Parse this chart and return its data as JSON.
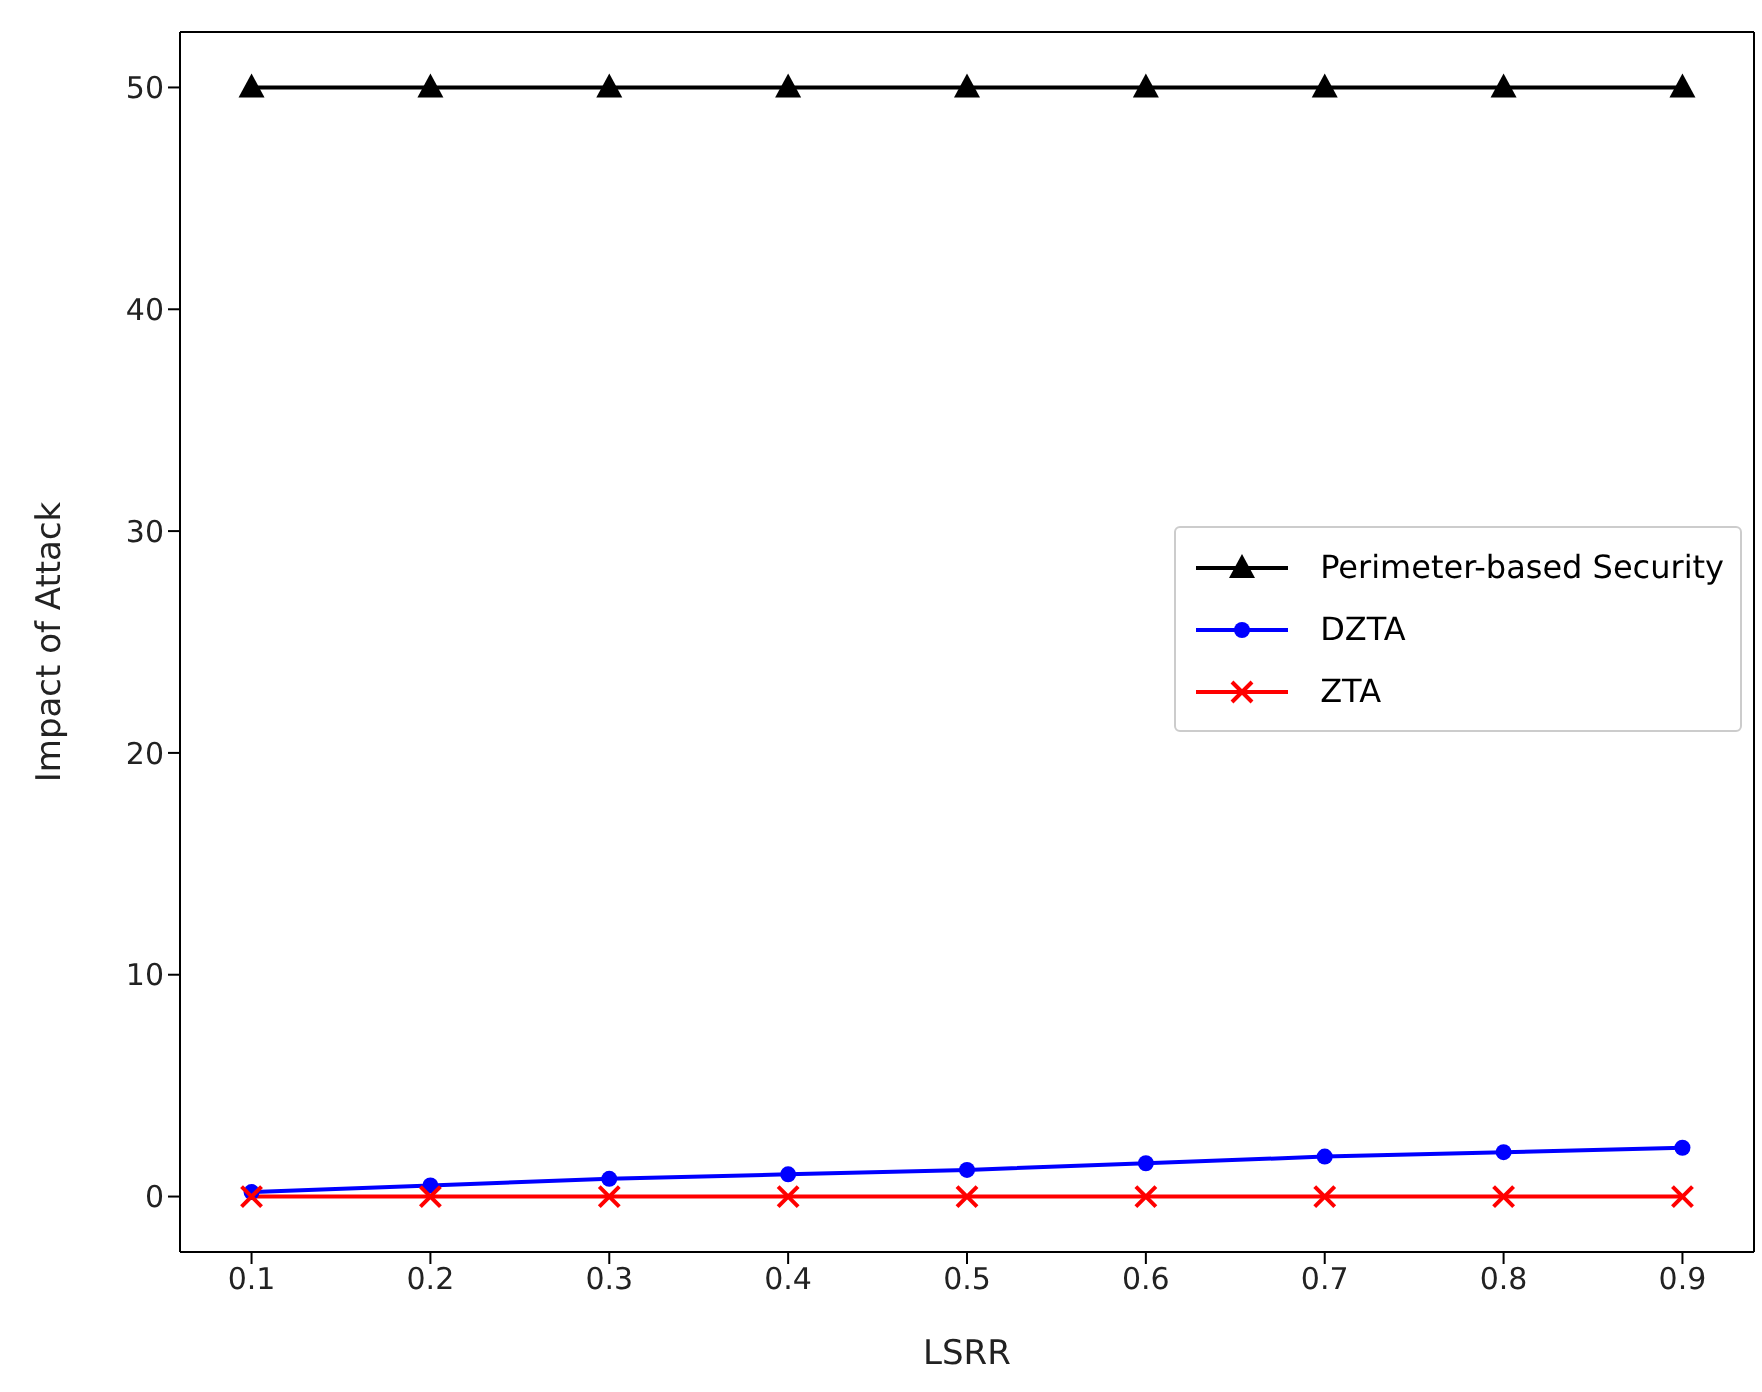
{
  "chart_data": {
    "type": "line",
    "xlabel": "LSRR",
    "ylabel": "Impact of Attack",
    "x": [
      0.1,
      0.2,
      0.3,
      0.4,
      0.5,
      0.6,
      0.7,
      0.8,
      0.9
    ],
    "xlim": [
      0.06,
      0.94
    ],
    "xticks": [
      0.1,
      0.2,
      0.3,
      0.4,
      0.5,
      0.6,
      0.7,
      0.8,
      0.9
    ],
    "ylim": [
      -2.5,
      52.5
    ],
    "yticks": [
      0,
      10,
      20,
      30,
      40,
      50
    ],
    "grid": false,
    "legend": "right",
    "line_style": "solid",
    "series": [
      {
        "name": "Perimeter-based Security",
        "color": "#000000",
        "marker": "triangle",
        "values": [
          50,
          50,
          50,
          50,
          50,
          50,
          50,
          50,
          50
        ]
      },
      {
        "name": "DZTA",
        "color": "#0000ff",
        "marker": "circle",
        "values": [
          0.2,
          0.5,
          0.8,
          1.0,
          1.2,
          1.5,
          1.8,
          2.0,
          2.2
        ]
      },
      {
        "name": "ZTA",
        "color": "#ff0000",
        "marker": "cross",
        "values": [
          0,
          0,
          0,
          0,
          0,
          0,
          0,
          0,
          0
        ]
      }
    ]
  }
}
